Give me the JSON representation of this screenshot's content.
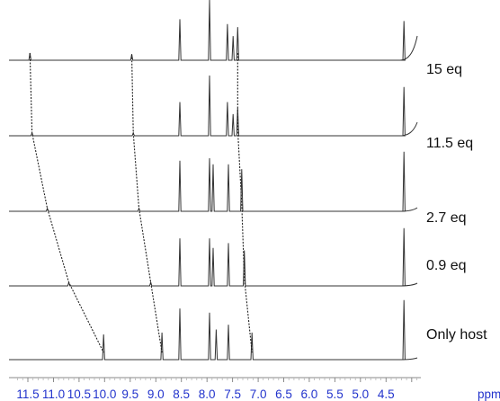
{
  "chart_data": {
    "type": "line",
    "x_unit": "ppm",
    "x_reversed": true,
    "xlim": [
      11.7,
      3.9
    ],
    "x_ticks": [
      "11.5",
      "11.0",
      "10.5",
      "10.0",
      "9.5",
      "9.0",
      "8.5",
      "8.0",
      "7.5",
      "7.0",
      "6.5",
      "6.0",
      "5.5",
      "5.0",
      "4.5"
    ],
    "series": [
      {
        "name": "15 eq",
        "peaks_ppm": [
          11.46,
          9.47,
          8.53,
          7.95,
          7.6,
          7.49,
          7.4,
          4.15
        ],
        "peak_heights": [
          0.12,
          0.1,
          0.68,
          1.0,
          0.6,
          0.4,
          0.55,
          0.65
        ]
      },
      {
        "name": "11.5 eq",
        "peaks_ppm": [
          11.42,
          9.44,
          8.53,
          7.95,
          7.6,
          7.49,
          7.4,
          4.15
        ],
        "peak_heights": [
          0.05,
          0.05,
          0.56,
          1.0,
          0.56,
          0.36,
          0.46,
          0.81
        ]
      },
      {
        "name": "2.7 eq",
        "peaks_ppm": [
          11.12,
          9.33,
          8.53,
          7.95,
          7.88,
          7.58,
          7.32,
          4.15
        ],
        "peak_heights": [
          0.05,
          0.05,
          0.84,
          0.88,
          0.78,
          0.78,
          0.7,
          0.99
        ]
      },
      {
        "name": "0.9 eq",
        "peaks_ppm": [
          10.7,
          9.1,
          8.53,
          7.95,
          7.88,
          7.58,
          7.27,
          4.15
        ],
        "peak_heights": [
          0.06,
          0.06,
          0.79,
          0.79,
          0.63,
          0.71,
          0.59,
          0.96
        ]
      },
      {
        "name": "Only host",
        "peaks_ppm": [
          10.02,
          8.88,
          8.53,
          7.95,
          7.82,
          7.58,
          7.12,
          4.15
        ],
        "peak_heights": [
          0.42,
          0.45,
          0.85,
          0.78,
          0.5,
          0.58,
          0.45,
          0.99
        ]
      }
    ],
    "shift_tracking_ppm": [
      [
        11.46,
        11.42,
        11.12,
        10.7,
        10.02
      ],
      [
        9.47,
        9.44,
        9.33,
        9.1,
        8.88
      ],
      [
        7.4,
        7.4,
        7.32,
        7.27,
        7.12
      ]
    ]
  },
  "colors": {
    "trace": "#333333",
    "tick_label": "#2233cc",
    "label": "#111111"
  }
}
